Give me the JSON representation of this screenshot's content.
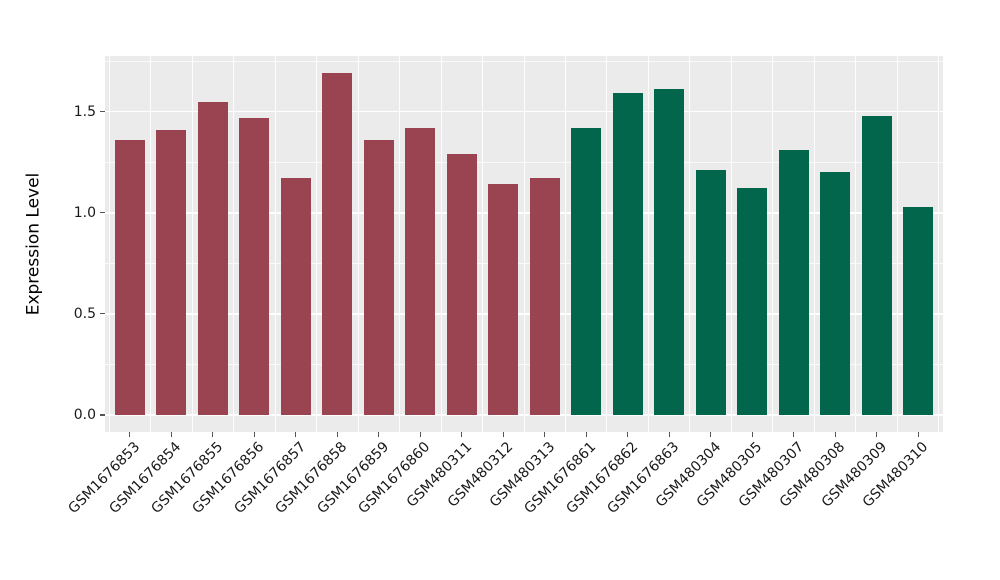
{
  "chart_data": {
    "type": "bar",
    "title": "",
    "xlabel": "",
    "ylabel": "Expression Level",
    "ylim": [
      -0.084,
      1.775
    ],
    "yticks": [
      {
        "label": "0.0",
        "value": 0.0
      },
      {
        "label": "0.5",
        "value": 0.5
      },
      {
        "label": "1.0",
        "value": 1.0
      },
      {
        "label": "1.5",
        "value": 1.5
      }
    ],
    "y_minor_gridlines": [
      0.25,
      0.75,
      1.25,
      1.75
    ],
    "palette": {
      "group_a": "#9A4351",
      "group_b": "#01664B"
    },
    "panel_background": "#EBEBEB",
    "gridline_color": "#FFFFFF",
    "layout_hints": {
      "grid": "on",
      "legend": "none",
      "x_tick_rotation_deg": 45,
      "vertical_gridlines": "between-categories"
    },
    "bars": [
      {
        "label": "GSM1676853",
        "value": 1.36,
        "group": "group_a",
        "color": "#9A4351"
      },
      {
        "label": "GSM1676854",
        "value": 1.41,
        "group": "group_a",
        "color": "#9A4351"
      },
      {
        "label": "GSM1676855",
        "value": 1.55,
        "group": "group_a",
        "color": "#9A4351"
      },
      {
        "label": "GSM1676856",
        "value": 1.47,
        "group": "group_a",
        "color": "#9A4351"
      },
      {
        "label": "GSM1676857",
        "value": 1.17,
        "group": "group_a",
        "color": "#9A4351"
      },
      {
        "label": "GSM1676858",
        "value": 1.69,
        "group": "group_a",
        "color": "#9A4351"
      },
      {
        "label": "GSM1676859",
        "value": 1.36,
        "group": "group_a",
        "color": "#9A4351"
      },
      {
        "label": "GSM1676860",
        "value": 1.42,
        "group": "group_a",
        "color": "#9A4351"
      },
      {
        "label": "GSM480311",
        "value": 1.29,
        "group": "group_a",
        "color": "#9A4351"
      },
      {
        "label": "GSM480312",
        "value": 1.14,
        "group": "group_a",
        "color": "#9A4351"
      },
      {
        "label": "GSM480313",
        "value": 1.17,
        "group": "group_a",
        "color": "#9A4351"
      },
      {
        "label": "GSM1676861",
        "value": 1.42,
        "group": "group_b",
        "color": "#01664B"
      },
      {
        "label": "GSM1676862",
        "value": 1.59,
        "group": "group_b",
        "color": "#01664B"
      },
      {
        "label": "GSM1676863",
        "value": 1.61,
        "group": "group_b",
        "color": "#01664B"
      },
      {
        "label": "GSM480304",
        "value": 1.21,
        "group": "group_b",
        "color": "#01664B"
      },
      {
        "label": "GSM480305",
        "value": 1.12,
        "group": "group_b",
        "color": "#01664B"
      },
      {
        "label": "GSM480307",
        "value": 1.31,
        "group": "group_b",
        "color": "#01664B"
      },
      {
        "label": "GSM480308",
        "value": 1.2,
        "group": "group_b",
        "color": "#01664B"
      },
      {
        "label": "GSM480309",
        "value": 1.48,
        "group": "group_b",
        "color": "#01664B"
      },
      {
        "label": "GSM480310",
        "value": 1.03,
        "group": "group_b",
        "color": "#01664B"
      }
    ]
  }
}
